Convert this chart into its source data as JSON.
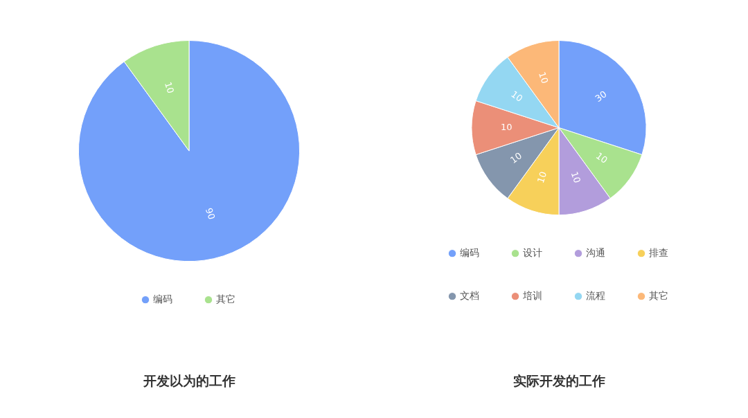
{
  "chart_data": [
    {
      "type": "pie",
      "title": "开发以为的工作",
      "categories": [
        "编码",
        "其它"
      ],
      "values": [
        90,
        10
      ],
      "colors": [
        "#73a0fa",
        "#a9e28e"
      ],
      "data_labels": true,
      "legend": "bottom"
    },
    {
      "type": "pie",
      "title": "实际开发的工作",
      "categories": [
        "编码",
        "设计",
        "沟通",
        "排查",
        "文档",
        "培训",
        "流程",
        "其它"
      ],
      "values": [
        30,
        10,
        10,
        10,
        10,
        10,
        10,
        10
      ],
      "colors": [
        "#73a0fa",
        "#a9e28e",
        "#b29ddc",
        "#f7d05a",
        "#8496ad",
        "#eb8f78",
        "#94d7f2",
        "#fcb878"
      ],
      "data_labels": true,
      "legend": "bottom"
    }
  ]
}
